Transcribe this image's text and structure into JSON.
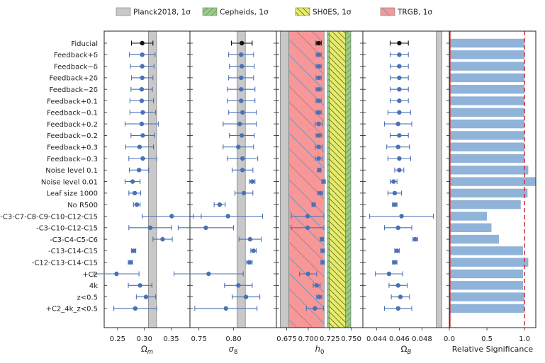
{
  "chart_data": {
    "type": "errorbar-multipanel",
    "legend": [
      {
        "label": "Planck2018, 1σ",
        "color": "#c8c8c8",
        "hatch": "none"
      },
      {
        "label": "Cepheids, 1σ",
        "color": "#9dc98c",
        "hatch": "//"
      },
      {
        "label": "SH0ES, 1σ",
        "color": "#e6ec6e",
        "hatch": "\\\\"
      },
      {
        "label": "TRGB, 1σ",
        "color": "#f79797",
        "hatch": "\\"
      }
    ],
    "row_labels": [
      "Fiducial",
      "Feedback+δ",
      "Feedback−δ",
      "Feedback+2δ",
      "Feedback−2δ",
      "Feedback+0.1",
      "Feedback−0.1",
      "Feedback+0.2",
      "Feedback−0.2",
      "Feedback+0.3",
      "Feedback−0.3",
      "Noise level 0.1",
      "Noise level 0.01",
      "Leaf size 1000",
      "No R500",
      "-C3-C7-C8-C9-C10-C12-C15",
      "-C3-C10-C12-C15",
      "-C3-C4-C5-C6",
      "-C13-C14-C15",
      "-C12-C13-C14-C15",
      "+C2",
      "4k",
      "z<0.5",
      "+C2_4k_z<0.5"
    ],
    "highlight_row": 0,
    "panels": [
      {
        "xlabel": "Ωm",
        "xlim": [
          0.225,
          0.385
        ],
        "ticks": [
          0.25,
          0.3,
          0.35
        ],
        "tick_labels": [
          "0.25",
          "0.30",
          "0.35"
        ],
        "bands": [
          {
            "name": "Planck",
            "lo": 0.3073,
            "hi": 0.3227,
            "color": "#c8c8c8"
          }
        ],
        "mean": [
          0.296,
          0.296,
          0.296,
          0.296,
          0.295,
          0.295,
          0.297,
          0.295,
          0.297,
          0.291,
          0.297,
          0.29,
          0.278,
          0.282,
          0.286,
          0.351,
          0.311,
          0.334,
          0.28,
          0.274,
          0.248,
          0.292,
          0.303,
          0.283
        ],
        "err": [
          0.02,
          0.024,
          0.022,
          0.02,
          0.02,
          0.022,
          0.024,
          0.031,
          0.022,
          0.026,
          0.026,
          0.018,
          0.014,
          0.011,
          0.006,
          0.055,
          0.04,
          0.018,
          0.004,
          0.004,
          0.042,
          0.022,
          0.018,
          0.04
        ]
      },
      {
        "xlabel": "σ8",
        "xlim": [
          0.737,
          0.862
        ],
        "ticks": [
          0.75,
          0.8
        ],
        "tick_labels": [
          "0.75",
          "0.80"
        ],
        "bands": [
          {
            "name": "Planck",
            "lo": 0.8051,
            "hi": 0.8171,
            "color": "#c8c8c8"
          }
        ],
        "mean": [
          0.812,
          0.811,
          0.812,
          0.811,
          0.811,
          0.811,
          0.813,
          0.809,
          0.812,
          0.807,
          0.813,
          0.813,
          0.827,
          0.815,
          0.78,
          0.792,
          0.76,
          0.824,
          0.829,
          0.823,
          0.764,
          0.807,
          0.818,
          0.789
        ],
        "err": [
          0.015,
          0.018,
          0.018,
          0.018,
          0.02,
          0.02,
          0.02,
          0.024,
          0.018,
          0.022,
          0.022,
          0.015,
          0.004,
          0.013,
          0.008,
          0.05,
          0.04,
          0.016,
          0.004,
          0.004,
          0.05,
          0.02,
          0.02,
          0.045
        ]
      },
      {
        "xlabel": "h0",
        "xlim": [
          0.663,
          0.7635
        ],
        "ticks": [
          0.675,
          0.7,
          0.725,
          0.75
        ],
        "tick_labels": [
          "0.675",
          "0.700",
          "0.725",
          "0.750"
        ],
        "bands": [
          {
            "name": "Planck",
            "lo": 0.6674,
            "hi": 0.6782,
            "color": "#c8c8c8",
            "hatch": "none"
          },
          {
            "name": "Cepheids",
            "lo": 0.7223,
            "hi": 0.7495,
            "color": "#9dc98c",
            "hatch": "//"
          },
          {
            "name": "SH0ES",
            "lo": 0.7245,
            "hi": 0.7432,
            "color": "#e6ec6e",
            "hatch": "\\\\"
          },
          {
            "name": "TRGB",
            "lo": 0.6775,
            "hi": 0.7185,
            "color": "#f79797",
            "hatch": "\\"
          }
        ],
        "mean": [
          0.7121,
          0.7121,
          0.7121,
          0.7121,
          0.7121,
          0.7121,
          0.7121,
          0.7121,
          0.7121,
          0.7121,
          0.7121,
          0.7128,
          0.7178,
          0.7138,
          0.7063,
          0.6993,
          0.6993,
          0.7158,
          0.7168,
          0.7168,
          0.6998,
          0.7098,
          0.7128,
          0.7078
        ],
        "err": [
          0.003,
          0.003,
          0.003,
          0.003,
          0.003,
          0.003,
          0.003,
          0.004,
          0.003,
          0.004,
          0.004,
          0.002,
          0.002,
          0.003,
          0.002,
          0.019,
          0.019,
          0.002,
          0.002,
          0.002,
          0.01,
          0.004,
          0.003,
          0.01
        ]
      },
      {
        "xlabel": "ΩB",
        "xlim": [
          0.0428,
          0.0504
        ],
        "ticks": [
          0.044,
          0.046,
          0.048
        ],
        "tick_labels": [
          "0.044",
          "0.046",
          "0.048"
        ],
        "bands": [
          {
            "name": "Planck",
            "lo": 0.04925,
            "hi": 0.04975,
            "color": "#c8c8c8"
          }
        ],
        "mean": [
          0.046,
          0.046,
          0.046,
          0.046,
          0.046,
          0.046,
          0.046,
          0.0459,
          0.046,
          0.0459,
          0.046,
          0.046,
          0.0455,
          0.0456,
          0.0456,
          0.0462,
          0.0459,
          0.0474,
          0.0458,
          0.0456,
          0.0451,
          0.0459,
          0.0461,
          0.0459
        ],
        "err": [
          0.0008,
          0.0008,
          0.0008,
          0.0008,
          0.0008,
          0.0008,
          0.001,
          0.0012,
          0.0008,
          0.001,
          0.001,
          0.0004,
          0.0003,
          0.0006,
          0.0002,
          0.0028,
          0.0012,
          0.0002,
          0.0002,
          0.0002,
          0.0012,
          0.0008,
          0.0008,
          0.0012
        ]
      }
    ],
    "significance": {
      "xlabel": "Relative Significance",
      "xlim": [
        0.0,
        1.15
      ],
      "ticks": [
        0.0,
        0.5,
        1.0
      ],
      "tick_labels": [
        "0.0",
        "0.5",
        "1.0"
      ],
      "reference_line": 1.0,
      "values": [
        1.0,
        1.0,
        1.0,
        1.0,
        1.0,
        1.0,
        1.0,
        1.0,
        1.0,
        1.0,
        1.0,
        1.05,
        1.15,
        1.04,
        0.95,
        0.5,
        0.56,
        0.66,
        0.98,
        1.05,
        0.98,
        0.98,
        1.0,
        1.0
      ]
    }
  }
}
